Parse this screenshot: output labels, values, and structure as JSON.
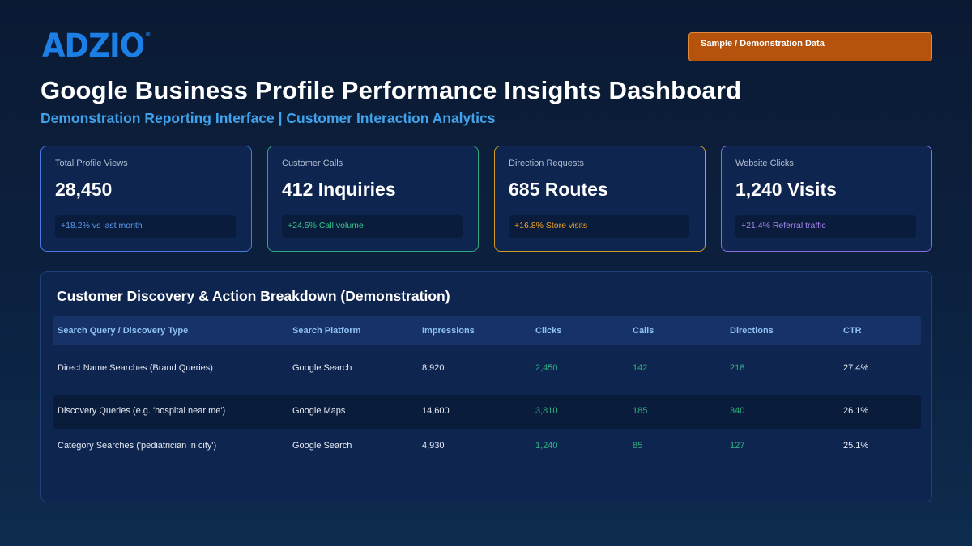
{
  "brand": {
    "logo_text": "ADZIO",
    "logo_mark": "®"
  },
  "badge": {
    "label": "Sample / Demonstration Data"
  },
  "header": {
    "title": "Google Business Profile Performance Insights Dashboard",
    "subtitle": "Demonstration Reporting Interface | Customer Interaction Analytics"
  },
  "kpis": [
    {
      "label": "Total Profile Views",
      "value": "28,450",
      "delta": "+18.2% vs last month"
    },
    {
      "label": "Customer Calls",
      "value": "412 Inquiries",
      "delta": "+24.5% Call volume"
    },
    {
      "label": "Direction Requests",
      "value": "685 Routes",
      "delta": "+16.8% Store visits"
    },
    {
      "label": "Website Clicks",
      "value": "1,240 Visits",
      "delta": "+21.4% Referral traffic"
    }
  ],
  "table": {
    "title": "Customer Discovery & Action Breakdown (Demonstration)",
    "columns": [
      "Search Query / Discovery Type",
      "Search Platform",
      "Impressions",
      "Clicks",
      "Calls",
      "Directions",
      "CTR"
    ],
    "rows": [
      [
        "Direct Name Searches (Brand Queries)",
        "Google Search",
        "8,920",
        "2,450",
        "142",
        "218",
        "27.4%"
      ],
      [
        "Discovery Queries (e.g. 'hospital near me')",
        "Google Maps",
        "14,600",
        "3,810",
        "185",
        "340",
        "26.1%"
      ],
      [
        "Category Searches ('pediatrician in city')",
        "Google Search",
        "4,930",
        "1,240",
        "85",
        "127",
        "25.1%"
      ]
    ]
  },
  "colors": {
    "accent_blue": "#3fa2ea",
    "badge_orange": "#b5520b",
    "kpi_views": "#4a7ae0",
    "kpi_calls": "#2fa882",
    "kpi_directions": "#d49b24",
    "kpi_website": "#8d6be0",
    "metric_green": "#2fb07f"
  }
}
